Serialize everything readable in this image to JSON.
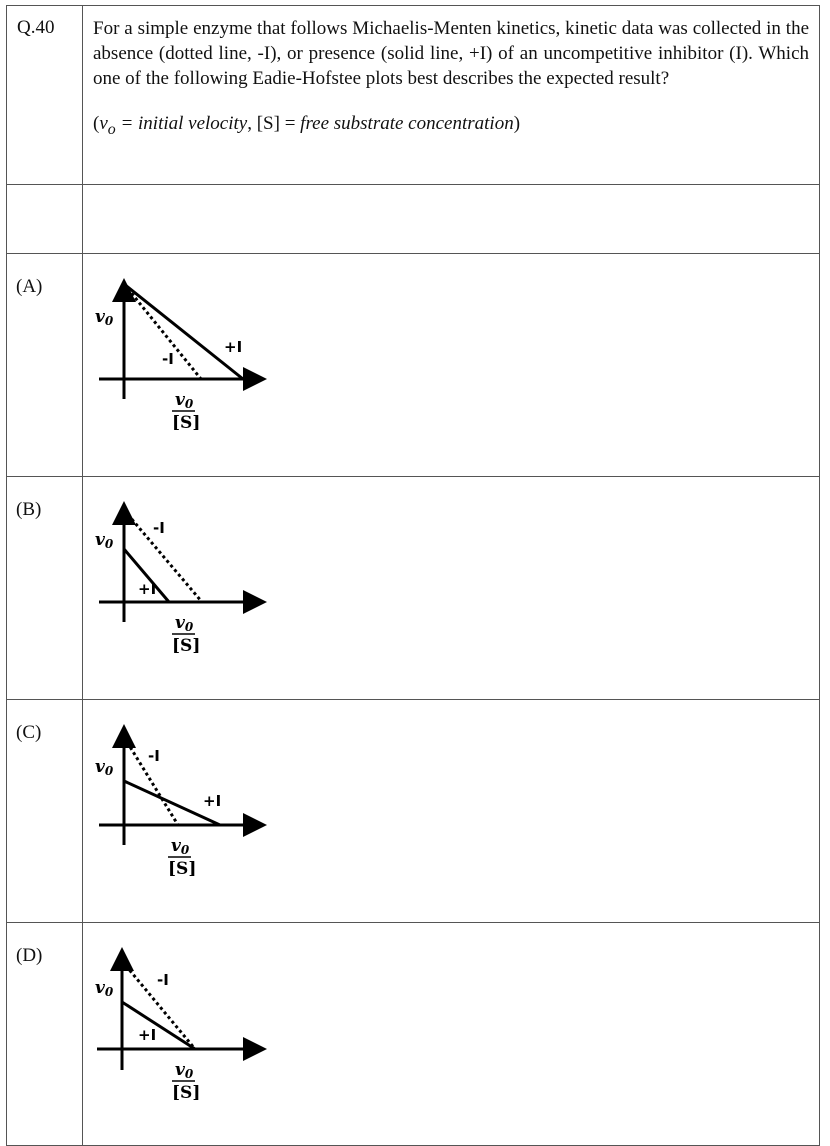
{
  "question": {
    "number": "Q.40",
    "text": "For a simple enzyme that follows Michaelis-Menten kinetics, kinetic data was collected in the absence (dotted line, -I), or presence (solid line, +I) of an uncompetitive inhibitor (I). Which one of the following Eadie-Hofstee plots best describes the expected result?",
    "definition_open": "(",
    "definition_var": "v",
    "definition_sub": "o",
    "definition_mid": " = initial velocity",
    "definition_sep": ", [S] = ",
    "definition_tail": "free substrate concentration",
    "definition_close": ")"
  },
  "axis": {
    "y_label_main": "v",
    "y_label_sub": "0",
    "x_label_num_main": "v",
    "x_label_num_sub": "0",
    "x_label_den": "[S]"
  },
  "options": [
    {
      "label": "(A)",
      "minus_tag": "-I",
      "plus_tag": "+I"
    },
    {
      "label": "(B)",
      "minus_tag": "-I",
      "plus_tag": "+I"
    },
    {
      "label": "(C)",
      "minus_tag": "-I",
      "plus_tag": "+I"
    },
    {
      "label": "(D)",
      "minus_tag": "-I",
      "plus_tag": "+I"
    }
  ]
}
